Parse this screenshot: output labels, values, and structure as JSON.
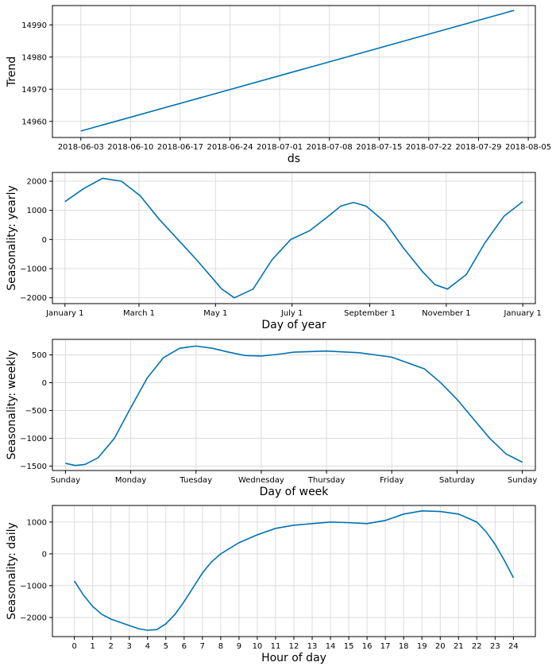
{
  "line_color": "#0072B2",
  "chart_data": [
    {
      "type": "line",
      "ylabel": "Trend",
      "xlabel": "ds",
      "x_type": "date",
      "xlim": [
        "2018-05-30",
        "2018-08-06"
      ],
      "ylim": [
        14955,
        14996
      ],
      "x_ticks": [
        "2018-06-03",
        "2018-06-10",
        "2018-06-17",
        "2018-06-24",
        "2018-07-01",
        "2018-07-08",
        "2018-07-15",
        "2018-07-22",
        "2018-07-29",
        "2018-08-05"
      ],
      "y_ticks": [
        14960,
        14970,
        14980,
        14990
      ],
      "grid": true,
      "series": [
        {
          "x": [
            "2018-06-03",
            "2018-08-03"
          ],
          "y": [
            14957,
            14994.5
          ]
        }
      ]
    },
    {
      "type": "line",
      "ylabel": "Seasonality: yearly",
      "xlabel": "Day of year",
      "xlim": [
        -10,
        375
      ],
      "ylim": [
        -2200,
        2300
      ],
      "x_ticks": [
        0,
        59,
        120,
        181,
        243,
        304,
        365
      ],
      "x_tick_labels": [
        "January 1",
        "March 1",
        "May 1",
        "July 1",
        "September 1",
        "November 1",
        "January 1"
      ],
      "y_ticks": [
        -2000,
        -1000,
        0,
        1000,
        2000
      ],
      "grid": true,
      "series": [
        {
          "x": [
            0,
            15,
            30,
            45,
            60,
            75,
            90,
            105,
            115,
            125,
            135,
            150,
            165,
            180,
            195,
            210,
            220,
            230,
            240,
            255,
            270,
            285,
            295,
            305,
            320,
            335,
            350,
            365
          ],
          "y": [
            1300,
            1750,
            2100,
            2000,
            1500,
            700,
            0,
            -700,
            -1200,
            -1700,
            -2000,
            -1700,
            -700,
            0,
            300,
            800,
            1150,
            1270,
            1150,
            600,
            -300,
            -1100,
            -1550,
            -1700,
            -1200,
            -100,
            800,
            1300
          ]
        }
      ]
    },
    {
      "type": "line",
      "ylabel": "Seasonality: weekly",
      "xlabel": "Day of week",
      "xlim": [
        -0.2,
        7.2
      ],
      "ylim": [
        -1580,
        780
      ],
      "x_ticks": [
        0,
        1,
        2,
        3,
        4,
        5,
        6,
        7
      ],
      "x_tick_labels": [
        "Sunday",
        "Monday",
        "Tuesday",
        "Wednesday",
        "Thursday",
        "Friday",
        "Saturday",
        "Sunday"
      ],
      "y_ticks": [
        -1500,
        -1000,
        -500,
        0,
        500
      ],
      "grid": true,
      "series": [
        {
          "x": [
            0,
            0.15,
            0.3,
            0.5,
            0.75,
            1.0,
            1.25,
            1.5,
            1.75,
            2.0,
            2.25,
            2.5,
            2.75,
            3.0,
            3.25,
            3.5,
            4.0,
            4.5,
            5.0,
            5.5,
            5.75,
            6.0,
            6.25,
            6.5,
            6.75,
            7.0
          ],
          "y": [
            -1450,
            -1490,
            -1470,
            -1350,
            -1000,
            -450,
            80,
            450,
            620,
            660,
            620,
            550,
            490,
            480,
            510,
            550,
            570,
            540,
            460,
            250,
            0,
            -300,
            -650,
            -1000,
            -1280,
            -1430
          ]
        }
      ]
    },
    {
      "type": "line",
      "ylabel": "Seasonality: daily",
      "xlabel": "Hour of day",
      "xlim": [
        -1.2,
        25.2
      ],
      "ylim": [
        -2600,
        1520
      ],
      "x_ticks": [
        0,
        1,
        2,
        3,
        4,
        5,
        6,
        7,
        8,
        9,
        10,
        11,
        12,
        13,
        14,
        15,
        16,
        17,
        18,
        19,
        20,
        21,
        22,
        23,
        24
      ],
      "x_tick_labels": [
        "0",
        "1",
        "2",
        "3",
        "4",
        "5",
        "6",
        "7",
        "8",
        "9",
        "10",
        "11",
        "12",
        "13",
        "14",
        "15",
        "16",
        "17",
        "18",
        "19",
        "20",
        "21",
        "22",
        "23",
        "24"
      ],
      "y_ticks": [
        -2000,
        -1000,
        0,
        1000
      ],
      "grid": true,
      "series": [
        {
          "x": [
            0,
            0.5,
            1,
            1.5,
            2,
            2.5,
            3,
            3.5,
            4,
            4.5,
            5,
            5.5,
            6,
            6.5,
            7,
            7.5,
            8,
            9,
            10,
            11,
            12,
            13,
            14,
            15,
            16,
            17,
            18,
            19,
            20,
            21,
            22,
            22.5,
            23,
            23.5,
            24
          ],
          "y": [
            -850,
            -1300,
            -1650,
            -1900,
            -2050,
            -2150,
            -2250,
            -2350,
            -2400,
            -2380,
            -2200,
            -1900,
            -1500,
            -1050,
            -600,
            -250,
            0,
            350,
            600,
            800,
            900,
            950,
            1000,
            980,
            950,
            1050,
            1250,
            1350,
            1330,
            1250,
            1000,
            700,
            300,
            -200,
            -750
          ]
        }
      ]
    }
  ]
}
